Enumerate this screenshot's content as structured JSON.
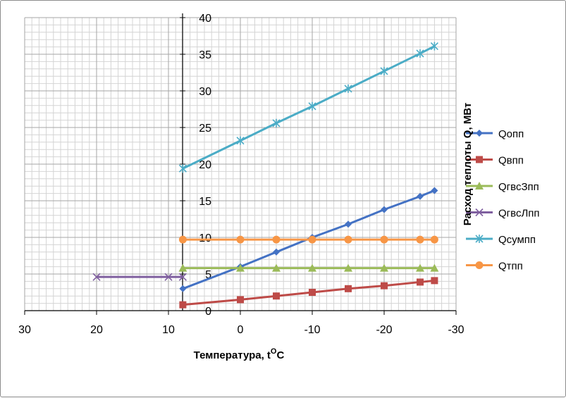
{
  "chart_data": {
    "type": "line",
    "xlabel": "Температура, t",
    "xlabel_sup": "O",
    "xlabel_unit": "C",
    "ylabel": "Расход теплоты Q, МВт",
    "xlim": [
      30,
      -30
    ],
    "ylim": [
      0,
      40
    ],
    "x_ticks": [
      30,
      20,
      10,
      0,
      -10,
      -20,
      -30
    ],
    "y_ticks": [
      0,
      5,
      10,
      15,
      20,
      25,
      30,
      35,
      40
    ],
    "grid": true,
    "legend_position": "right",
    "series": [
      {
        "name": "Qопп",
        "color": "#4472C4",
        "marker": "diamond",
        "x": [
          8,
          0,
          -5,
          -10,
          -15,
          -20,
          -25,
          -27
        ],
        "y": [
          3.0,
          6.0,
          8.0,
          10.0,
          11.8,
          13.8,
          15.6,
          16.4
        ]
      },
      {
        "name": "Qвпп",
        "color": "#BE4B48",
        "marker": "square",
        "x": [
          8,
          0,
          -5,
          -10,
          -15,
          -20,
          -25,
          -27
        ],
        "y": [
          0.8,
          1.5,
          2.0,
          2.5,
          3.0,
          3.4,
          3.9,
          4.1
        ]
      },
      {
        "name": "QгвсЗпп",
        "color": "#9BBB59",
        "marker": "triangle",
        "x": [
          8,
          0,
          -5,
          -10,
          -15,
          -20,
          -25,
          -27
        ],
        "y": [
          5.8,
          5.8,
          5.8,
          5.8,
          5.8,
          5.8,
          5.8,
          5.8
        ]
      },
      {
        "name": "QгвсЛпп",
        "color": "#7F5F9F",
        "marker": "x",
        "x": [
          20,
          10,
          8
        ],
        "y": [
          4.6,
          4.6,
          4.6
        ]
      },
      {
        "name": "Qсумпп",
        "color": "#4BACC6",
        "marker": "star",
        "x": [
          8,
          0,
          -5,
          -10,
          -15,
          -20,
          -25,
          -27
        ],
        "y": [
          19.4,
          23.2,
          25.6,
          27.9,
          30.3,
          32.7,
          35.1,
          36.1
        ]
      },
      {
        "name": "Qтпп",
        "color": "#F79646",
        "marker": "circle",
        "x": [
          8,
          0,
          -5,
          -10,
          -15,
          -20,
          -25,
          -27
        ],
        "y": [
          9.7,
          9.7,
          9.7,
          9.7,
          9.7,
          9.7,
          9.7,
          9.7
        ]
      }
    ]
  }
}
